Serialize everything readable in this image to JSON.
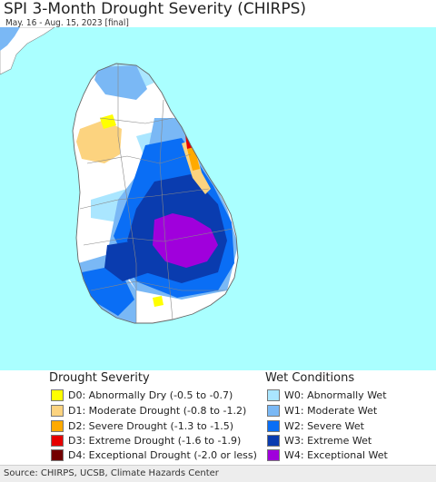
{
  "title": "SPI 3-Month Drought Severity (CHIRPS)",
  "subtitle": "May. 16 - Aug. 15, 2023 [final]",
  "legend": {
    "drought": {
      "title": "Drought Severity",
      "items": [
        {
          "label": "D0: Abnormally Dry (-0.5 to -0.7)",
          "color": "#ffff00"
        },
        {
          "label": "D1: Moderate Drought (-0.8 to -1.2)",
          "color": "#fcd37f"
        },
        {
          "label": "D2: Severe Drought (-1.3 to -1.5)",
          "color": "#ffaa00"
        },
        {
          "label": "D3: Extreme Drought (-1.6 to -1.9)",
          "color": "#e60000"
        },
        {
          "label": "D4: Exceptional Drought (-2.0 or less)",
          "color": "#730000"
        }
      ]
    },
    "wet": {
      "title": "Wet Conditions",
      "items": [
        {
          "label": "W0: Abnormally Wet",
          "color": "#aae6ff"
        },
        {
          "label": "W1: Moderate Wet",
          "color": "#7ab8f5"
        },
        {
          "label": "W2: Severe Wet",
          "color": "#0a6ef5"
        },
        {
          "label": "W3: Extreme Wet",
          "color": "#0a3caf"
        },
        {
          "label": "W4: Exceptional Wet",
          "color": "#a000dc"
        }
      ]
    }
  },
  "source": "Source: CHIRPS, UCSB, Climate Hazards Center",
  "colors": {
    "ocean": "#aaffff",
    "land": "#ffffff",
    "border": "#888888"
  }
}
